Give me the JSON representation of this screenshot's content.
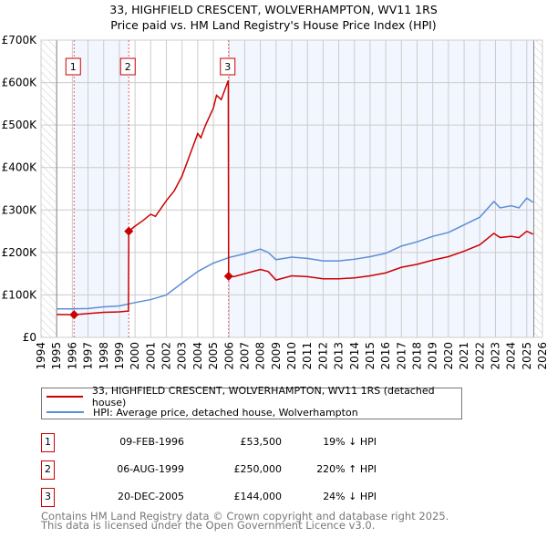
{
  "title_line1": "33, HIGHFIELD CRESCENT, WOLVERHAMPTON, WV11 1RS",
  "title_line2": "Price paid vs. HM Land Registry's House Price Index (HPI)",
  "chart_data": {
    "type": "line",
    "title": "33, HIGHFIELD CRESCENT, WOLVERHAMPTON, WV11 1RS — Price paid vs. HM Land Registry's House Price Index (HPI)",
    "xlim": [
      1994,
      2026
    ],
    "ylim": [
      0,
      700000
    ],
    "x_ticks": [
      "1994",
      "1995",
      "1996",
      "1997",
      "1998",
      "1999",
      "2000",
      "2001",
      "2002",
      "2003",
      "2004",
      "2005",
      "2006",
      "2007",
      "2008",
      "2009",
      "2010",
      "2011",
      "2012",
      "2013",
      "2014",
      "2015",
      "2016",
      "2017",
      "2018",
      "2019",
      "2020",
      "2021",
      "2022",
      "2023",
      "2024",
      "2025",
      "2026"
    ],
    "y_ticks": [
      {
        "v": 0,
        "label": "£0"
      },
      {
        "v": 100000,
        "label": "£100K"
      },
      {
        "v": 200000,
        "label": "£200K"
      },
      {
        "v": 300000,
        "label": "£300K"
      },
      {
        "v": 400000,
        "label": "£400K"
      },
      {
        "v": 500000,
        "label": "£500K"
      },
      {
        "v": 600000,
        "label": "£600K"
      },
      {
        "v": 700000,
        "label": "£700K"
      }
    ],
    "grid": true,
    "data_start": 1995.0,
    "data_end": 2025.45,
    "shaded_ranges": [
      [
        1996.11,
        1999.6
      ],
      [
        2005.97,
        2025.45
      ]
    ],
    "series": [
      {
        "name": "33, HIGHFIELD CRESCENT, WOLVERHAMPTON, WV11 1RS (detached house)",
        "color": "#cc0000",
        "x": [
          1995.0,
          1996.11,
          1997,
          1998,
          1999,
          1999.58,
          1999.6,
          2000,
          2000.5,
          2001,
          2001.3,
          2002,
          2002.5,
          2003,
          2003.5,
          2004,
          2004.2,
          2004.5,
          2005,
          2005.2,
          2005.5,
          2005.95,
          2005.97,
          2006.3,
          2007,
          2008,
          2008.5,
          2009,
          2010,
          2011,
          2012,
          2013,
          2014,
          2015,
          2016,
          2017,
          2018,
          2019,
          2020,
          2021,
          2022,
          2022.9,
          2023.3,
          2024,
          2024.5,
          2025,
          2025.4
        ],
        "y": [
          54000,
          53500,
          56000,
          59000,
          60000,
          62000,
          250000,
          262000,
          275000,
          290000,
          285000,
          322000,
          345000,
          380000,
          430000,
          480000,
          470000,
          500000,
          540000,
          570000,
          560000,
          605000,
          144000,
          143000,
          150000,
          160000,
          155000,
          135000,
          145000,
          143000,
          138000,
          138000,
          140000,
          145000,
          152000,
          165000,
          172000,
          182000,
          190000,
          203000,
          218000,
          245000,
          235000,
          238000,
          235000,
          250000,
          243000
        ]
      },
      {
        "name": "HPI: Average price, detached house, Wolverhampton",
        "color": "#5b8fd6",
        "x": [
          1995.0,
          1996,
          1997,
          1998,
          1999,
          2000,
          2001,
          2002,
          2003,
          2004,
          2005,
          2006,
          2007,
          2008,
          2008.5,
          2009,
          2010,
          2011,
          2012,
          2013,
          2014,
          2015,
          2016,
          2017,
          2018,
          2019,
          2020,
          2021,
          2022,
          2022.9,
          2023.3,
          2024,
          2024.5,
          2025,
          2025.4
        ],
        "y": [
          67000,
          67000,
          68000,
          72000,
          74000,
          82000,
          89000,
          100000,
          128000,
          155000,
          175000,
          188000,
          197000,
          208000,
          200000,
          183000,
          189000,
          186000,
          180000,
          180000,
          184000,
          190000,
          198000,
          215000,
          225000,
          238000,
          247000,
          265000,
          283000,
          320000,
          305000,
          310000,
          305000,
          328000,
          318000
        ]
      }
    ],
    "sales": [
      {
        "label": "1",
        "x": 1996.11,
        "y": 53500
      },
      {
        "label": "2",
        "x": 1999.6,
        "y": 250000
      },
      {
        "label": "3",
        "x": 2005.97,
        "y": 144000
      }
    ]
  },
  "legend": [
    {
      "label": "33, HIGHFIELD CRESCENT, WOLVERHAMPTON, WV11 1RS (detached house)",
      "color": "#cc0000"
    },
    {
      "label": "HPI: Average price, detached house, Wolverhampton",
      "color": "#5b8fd6"
    }
  ],
  "transactions": [
    {
      "num": "1",
      "date": "09-FEB-1996",
      "price": "£53,500",
      "hpi": "19% ↓ HPI"
    },
    {
      "num": "2",
      "date": "06-AUG-1999",
      "price": "£250,000",
      "hpi": "220% ↑ HPI"
    },
    {
      "num": "3",
      "date": "20-DEC-2005",
      "price": "£144,000",
      "hpi": "24% ↓ HPI"
    }
  ],
  "footer_line1": "Contains HM Land Registry data © Crown copyright and database right 2025.",
  "footer_line2": "This data is licensed under the Open Government Licence v3.0."
}
